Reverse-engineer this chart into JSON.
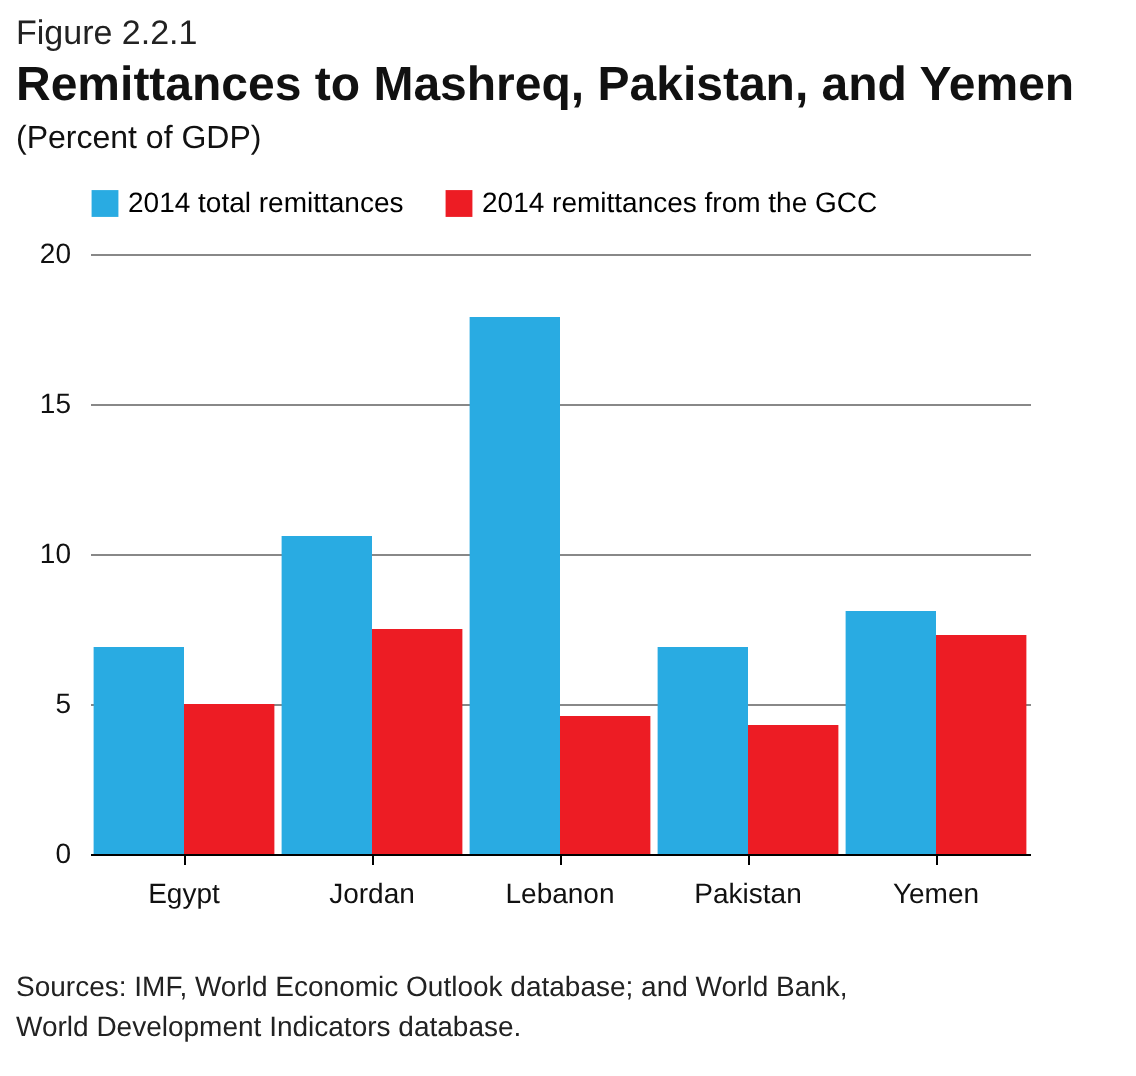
{
  "chart_data": {
    "type": "bar",
    "title": "Remittances to Mashreq, Pakistan, and Yemen",
    "subtitle": "(Percent of GDP)",
    "annotations": [
      "Figure 2.2.1",
      "Sources: IMF, World Economic Outlook database; and World Bank,\nWorld Development Indicators database."
    ],
    "categories": [
      "Egypt",
      "Jordan",
      "Lebanon",
      "Pakistan",
      "Yemen"
    ],
    "series": [
      {
        "name": "2014 total remittances",
        "color": "#29abe2",
        "values": [
          6.9,
          10.6,
          17.9,
          6.9,
          8.1
        ]
      },
      {
        "name": "2014 remittances from the GCC",
        "color": "#ed1c24",
        "values": [
          5.0,
          7.5,
          4.6,
          4.3,
          7.3
        ]
      }
    ],
    "ylim": [
      0,
      20
    ],
    "yticks": [
      0,
      5,
      10,
      15,
      20
    ],
    "grid": "y",
    "legend": "top"
  }
}
